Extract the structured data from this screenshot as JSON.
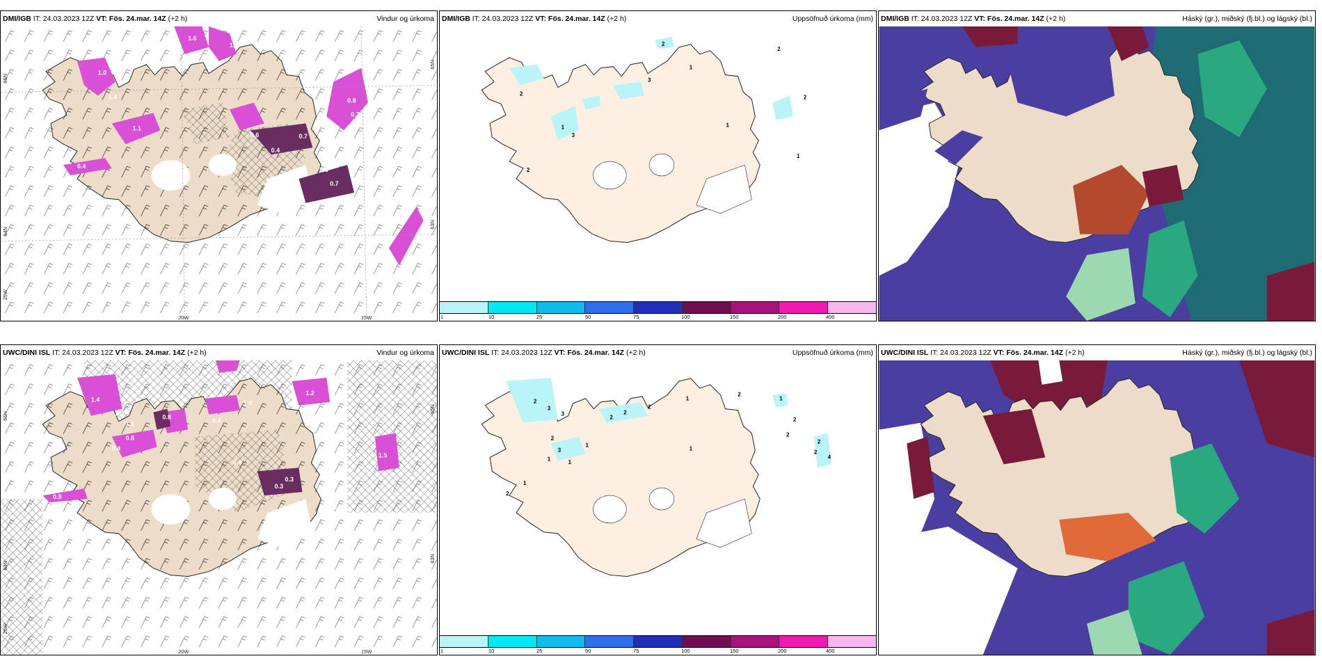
{
  "colors": {
    "land": "#ecdcc8",
    "land_precip": "#fdf0e2",
    "snow": "#ffffff",
    "precip_magenta": "#d94fd6",
    "precip_dark": "#6a2d62",
    "cloud_high": "#4a3fa0",
    "cloud_high_dark": "#7a1a3a",
    "cloud_mid": "#b34a2e",
    "cloud_low": "#2aa880",
    "cloud_sea": "#1f6b73"
  },
  "panels": [
    {
      "id": "p1",
      "model": "DMI/IGB",
      "it": " IT: 24.03.2023 12Z ",
      "vt_bold": "VT: Fös. 24.mar. 14Z",
      "vt_tail": " (+2 h)",
      "title_right": "Vindur og úrkoma",
      "lat_labels": [
        "66N",
        "65N",
        "64N",
        "63N"
      ],
      "lon_labels": [
        "25W",
        "20W",
        "15W"
      ],
      "values": [
        "1.6",
        "1.0",
        "1.1",
        "0.6",
        "0.7",
        "0.4",
        "0.8",
        "0.7",
        "0.7",
        "1.4",
        "0.5",
        "0.4",
        "1.6"
      ]
    },
    {
      "id": "p2",
      "model": "DMI/IGB",
      "it": " IT: 24.03.2023 12Z ",
      "vt_bold": "VT: Fös. 24.mar. 14Z",
      "vt_tail": " (+2 h)",
      "title_right": "Uppsöfnuð úrkoma (mm)",
      "values": [
        "2",
        "2",
        "1",
        "3",
        "2",
        "3",
        "1",
        "2",
        "1",
        "2",
        "1",
        "1"
      ],
      "colorbar": {
        "colors": [
          "#b8f4f8",
          "#00e8f4",
          "#10bce8",
          "#2f6ee8",
          "#1f2fb8",
          "#6e0f54",
          "#a8127e",
          "#f01ab0",
          "#f8b8ef"
        ],
        "ticks": [
          "1",
          "10",
          "25",
          "50",
          "75",
          "100",
          "150",
          "200",
          "400"
        ]
      }
    },
    {
      "id": "p3",
      "model": "DMI/IGB",
      "it": " IT: 24.03.2023 12Z ",
      "vt_bold": "VT: Fös. 24.mar. 14Z",
      "vt_tail": " (+2 h)",
      "title_right": "Háský (gr.), miðský (fj.bl.) og lágský (bl.)"
    },
    {
      "id": "p4",
      "model": "UWC/DINI ISL",
      "it": " IT: 24.03.2023 12Z ",
      "vt_bold": "VT: Fös. 24.mar. 14Z",
      "vt_tail": " (+2 h)",
      "title_right": "Vindur og úrkoma",
      "lat_labels": [
        "66N",
        "65N",
        "64N",
        "63N"
      ],
      "lon_labels": [
        "25W",
        "20W",
        "15W"
      ],
      "values": [
        "0.3",
        "1.4",
        "1.0",
        "1.6",
        "0.8",
        "0.4",
        "1.2",
        "0.4",
        "0.8",
        "1.0",
        "0.4",
        "0.3",
        "0.3",
        "0.4",
        "1.5",
        "0.8"
      ]
    },
    {
      "id": "p5",
      "model": "UWC/DINI ISL",
      "it": " IT: 24.03.2023 12Z ",
      "vt_bold": "VT: Fös. 24.mar. 14Z",
      "vt_tail": " (+2 h)",
      "title_right": "Uppsöfnuð úrkoma (mm)",
      "values": [
        "2",
        "3",
        "3",
        "2",
        "3",
        "1",
        "2",
        "2",
        "2",
        "1",
        "2",
        "1",
        "2",
        "2",
        "1",
        "2",
        "1",
        "1",
        "1",
        "2",
        "2",
        "4"
      ],
      "colorbar": {
        "colors": [
          "#b8f4f8",
          "#00e8f4",
          "#10bce8",
          "#2f6ee8",
          "#1f2fb8",
          "#6e0f54",
          "#a8127e",
          "#f01ab0",
          "#f8b8ef"
        ],
        "ticks": [
          "1",
          "10",
          "25",
          "50",
          "75",
          "100",
          "150",
          "200",
          "400"
        ]
      }
    },
    {
      "id": "p6",
      "model": "UWC/DINI ISL",
      "it": " IT: 24.03.2023 12Z ",
      "vt_bold": "VT: Fös. 24.mar. 14Z",
      "vt_tail": " (+2 h)",
      "title_right": "Háský (gr.), miðský (fj.bl.) og lágský (bl.)"
    }
  ]
}
